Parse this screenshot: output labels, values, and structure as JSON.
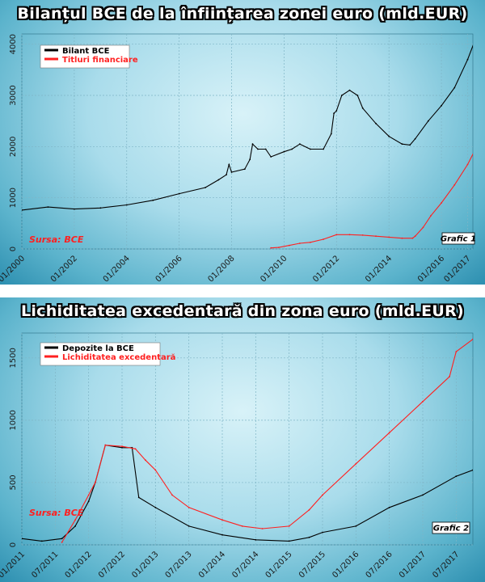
{
  "chart_data": [
    {
      "type": "line",
      "title": "Bilanțul BCE de la înființarea zonei euro (mld.EUR)",
      "source": "Sursa: BCE",
      "figure_label": "Grafic 1",
      "xlim": [
        2000.0,
        2017.2
      ],
      "ylim": [
        0,
        4200
      ],
      "y_ticks": [
        0,
        1000,
        2000,
        3000,
        4000
      ],
      "x_ticks": [
        {
          "x": 2000,
          "label": "01/2000"
        },
        {
          "x": 2002,
          "label": "01/2002"
        },
        {
          "x": 2004,
          "label": "01/2004"
        },
        {
          "x": 2006,
          "label": "01/2006"
        },
        {
          "x": 2008,
          "label": "01/2008"
        },
        {
          "x": 2010,
          "label": "01/2010"
        },
        {
          "x": 2012,
          "label": "01/2012"
        },
        {
          "x": 2014,
          "label": "01/2014"
        },
        {
          "x": 2016,
          "label": "01/2016"
        },
        {
          "x": 2017,
          "label": "01/2017"
        }
      ],
      "grid": true,
      "legend": "top-left",
      "series": [
        {
          "name": "Bilant BCE",
          "color": "#000000",
          "points": [
            [
              1999.0,
              700
            ],
            [
              2000.0,
              760
            ],
            [
              2001.0,
              820
            ],
            [
              2002.0,
              780
            ],
            [
              2003.0,
              800
            ],
            [
              2004.0,
              860
            ],
            [
              2005.0,
              950
            ],
            [
              2006.0,
              1080
            ],
            [
              2007.0,
              1200
            ],
            [
              2007.5,
              1350
            ],
            [
              2007.8,
              1450
            ],
            [
              2007.9,
              1650
            ],
            [
              2008.0,
              1500
            ],
            [
              2008.5,
              1560
            ],
            [
              2008.7,
              1750
            ],
            [
              2008.8,
              2050
            ],
            [
              2009.0,
              1950
            ],
            [
              2009.3,
              1950
            ],
            [
              2009.5,
              1800
            ],
            [
              2010.0,
              1900
            ],
            [
              2010.3,
              1950
            ],
            [
              2010.6,
              2050
            ],
            [
              2011.0,
              1950
            ],
            [
              2011.5,
              1950
            ],
            [
              2011.8,
              2250
            ],
            [
              2011.9,
              2650
            ],
            [
              2012.0,
              2700
            ],
            [
              2012.2,
              3000
            ],
            [
              2012.5,
              3100
            ],
            [
              2012.8,
              3000
            ],
            [
              2013.0,
              2750
            ],
            [
              2013.5,
              2450
            ],
            [
              2014.0,
              2200
            ],
            [
              2014.5,
              2050
            ],
            [
              2014.8,
              2030
            ],
            [
              2015.0,
              2150
            ],
            [
              2015.5,
              2500
            ],
            [
              2016.0,
              2800
            ],
            [
              2016.5,
              3150
            ],
            [
              2017.0,
              3700
            ],
            [
              2017.3,
              4100
            ]
          ]
        },
        {
          "name": "Titluri financiare",
          "color": "#ff2020",
          "points": [
            [
              2009.5,
              20
            ],
            [
              2009.8,
              30
            ],
            [
              2010.2,
              70
            ],
            [
              2010.6,
              110
            ],
            [
              2011.0,
              130
            ],
            [
              2011.5,
              190
            ],
            [
              2012.0,
              280
            ],
            [
              2012.5,
              280
            ],
            [
              2013.0,
              270
            ],
            [
              2013.5,
              250
            ],
            [
              2014.0,
              230
            ],
            [
              2014.5,
              210
            ],
            [
              2014.9,
              210
            ],
            [
              2015.0,
              250
            ],
            [
              2015.3,
              420
            ],
            [
              2015.6,
              650
            ],
            [
              2016.0,
              900
            ],
            [
              2016.5,
              1250
            ],
            [
              2017.0,
              1650
            ],
            [
              2017.3,
              1950
            ]
          ]
        }
      ]
    },
    {
      "type": "line",
      "title": "Lichiditatea excedentară din zona euro (mld.EUR)",
      "source": "Sursa: BCE",
      "figure_label": "Grafic 2",
      "xlim": [
        2011.0,
        2017.75
      ],
      "ylim": [
        0,
        1700
      ],
      "y_ticks": [
        0,
        500,
        1000,
        1500
      ],
      "x_ticks": [
        {
          "x": 2011.0,
          "label": "01/2011"
        },
        {
          "x": 2011.5,
          "label": "07/2011"
        },
        {
          "x": 2012.0,
          "label": "01/2012"
        },
        {
          "x": 2012.5,
          "label": "07/2012"
        },
        {
          "x": 2013.0,
          "label": "01/2013"
        },
        {
          "x": 2013.5,
          "label": "07/2013"
        },
        {
          "x": 2014.0,
          "label": "01/2014"
        },
        {
          "x": 2014.5,
          "label": "07/2014"
        },
        {
          "x": 2015.0,
          "label": "01/2015"
        },
        {
          "x": 2015.5,
          "label": "07/2015"
        },
        {
          "x": 2016.0,
          "label": "01/2016"
        },
        {
          "x": 2016.5,
          "label": "07/2016"
        },
        {
          "x": 2017.0,
          "label": "01/2017"
        },
        {
          "x": 2017.5,
          "label": "07/2017"
        }
      ],
      "grid": true,
      "legend": "top-left",
      "series": [
        {
          "name": "Depozite la BCE",
          "color": "#000000",
          "points": [
            [
              2011.0,
              50
            ],
            [
              2011.3,
              30
            ],
            [
              2011.6,
              50
            ],
            [
              2011.8,
              150
            ],
            [
              2012.0,
              350
            ],
            [
              2012.1,
              500
            ],
            [
              2012.25,
              800
            ],
            [
              2012.5,
              780
            ],
            [
              2012.65,
              780
            ],
            [
              2012.75,
              380
            ],
            [
              2013.0,
              300
            ],
            [
              2013.5,
              150
            ],
            [
              2014.0,
              80
            ],
            [
              2014.5,
              40
            ],
            [
              2015.0,
              30
            ],
            [
              2015.3,
              60
            ],
            [
              2015.5,
              100
            ],
            [
              2016.0,
              150
            ],
            [
              2016.5,
              300
            ],
            [
              2017.0,
              400
            ],
            [
              2017.5,
              550
            ],
            [
              2017.75,
              600
            ]
          ]
        },
        {
          "name": "Lichiditatea excedentară",
          "color": "#ff2020",
          "points": [
            [
              2011.6,
              20
            ],
            [
              2011.8,
              200
            ],
            [
              2012.0,
              400
            ],
            [
              2012.1,
              500
            ],
            [
              2012.25,
              800
            ],
            [
              2012.5,
              790
            ],
            [
              2012.7,
              770
            ],
            [
              2012.85,
              680
            ],
            [
              2013.0,
              600
            ],
            [
              2013.25,
              400
            ],
            [
              2013.5,
              300
            ],
            [
              2014.0,
              200
            ],
            [
              2014.3,
              150
            ],
            [
              2014.6,
              130
            ],
            [
              2015.0,
              150
            ],
            [
              2015.3,
              280
            ],
            [
              2015.5,
              400
            ],
            [
              2016.0,
              650
            ],
            [
              2016.5,
              900
            ],
            [
              2017.0,
              1150
            ],
            [
              2017.4,
              1350
            ],
            [
              2017.5,
              1550
            ],
            [
              2017.75,
              1650
            ]
          ]
        }
      ]
    }
  ]
}
